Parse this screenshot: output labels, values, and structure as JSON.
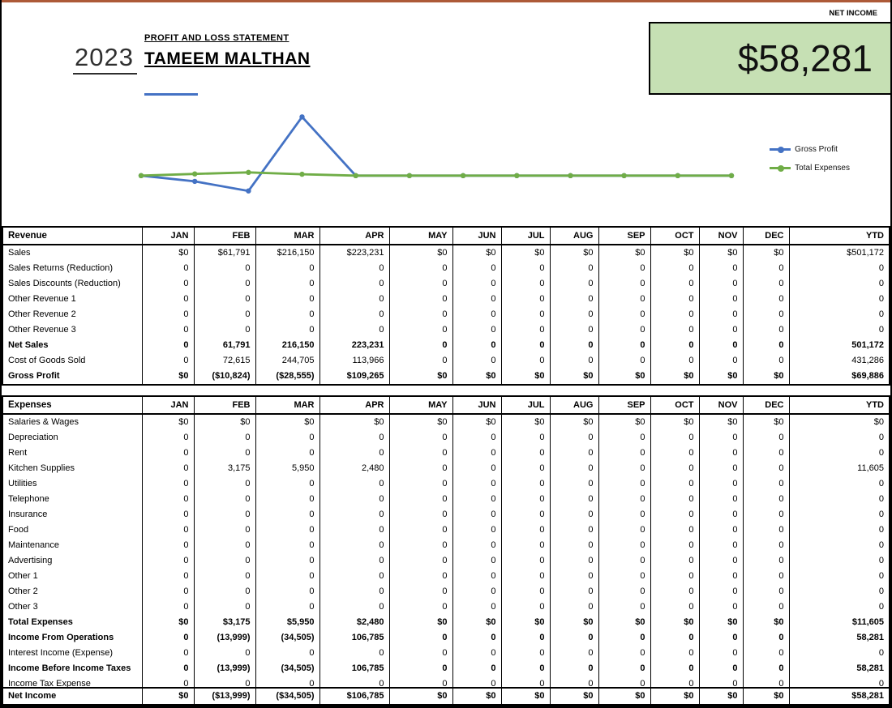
{
  "header": {
    "year": "2023",
    "subtitle": "PROFIT AND LOSS STATEMENT",
    "company": "TAMEEM MALTHAN",
    "net_income_label": "NET INCOME",
    "net_income_value": "$58,281"
  },
  "colors": {
    "gross_profit_line": "#4472c4",
    "total_expenses_line": "#70ad47",
    "net_income_box_bg": "#c6e0b4",
    "accent_underline": "#4472c4"
  },
  "chart_data": {
    "type": "line",
    "x": [
      "JAN",
      "FEB",
      "MAR",
      "APR",
      "MAY",
      "JUN",
      "JUL",
      "AUG",
      "SEP",
      "OCT",
      "NOV",
      "DEC"
    ],
    "series": [
      {
        "name": "Gross Profit",
        "color": "#4472c4",
        "values": [
          0,
          -10824,
          -28555,
          109265,
          0,
          0,
          0,
          0,
          0,
          0,
          0,
          0
        ]
      },
      {
        "name": "Total Expenses",
        "color": "#70ad47",
        "values": [
          0,
          3175,
          5950,
          2480,
          0,
          0,
          0,
          0,
          0,
          0,
          0,
          0
        ]
      }
    ],
    "title": "",
    "xlabel": "",
    "ylabel": "",
    "grid": false,
    "axes_hidden": true,
    "legend_position": "right"
  },
  "columns": [
    "JAN",
    "FEB",
    "MAR",
    "APR",
    "MAY",
    "JUN",
    "JUL",
    "AUG",
    "SEP",
    "OCT",
    "NOV",
    "DEC",
    "YTD"
  ],
  "revenue": {
    "title": "Revenue",
    "rows": [
      {
        "label": "Sales",
        "bold": false,
        "values": [
          "$0",
          "$61,791",
          "$216,150",
          "$223,231",
          "$0",
          "$0",
          "$0",
          "$0",
          "$0",
          "$0",
          "$0",
          "$0",
          "$501,172"
        ]
      },
      {
        "label": "Sales Returns (Reduction)",
        "bold": false,
        "values": [
          "0",
          "0",
          "0",
          "0",
          "0",
          "0",
          "0",
          "0",
          "0",
          "0",
          "0",
          "0",
          "0"
        ]
      },
      {
        "label": "Sales Discounts (Reduction)",
        "bold": false,
        "values": [
          "0",
          "0",
          "0",
          "0",
          "0",
          "0",
          "0",
          "0",
          "0",
          "0",
          "0",
          "0",
          "0"
        ]
      },
      {
        "label": "Other Revenue 1",
        "bold": false,
        "values": [
          "0",
          "0",
          "0",
          "0",
          "0",
          "0",
          "0",
          "0",
          "0",
          "0",
          "0",
          "0",
          "0"
        ]
      },
      {
        "label": "Other Revenue 2",
        "bold": false,
        "values": [
          "0",
          "0",
          "0",
          "0",
          "0",
          "0",
          "0",
          "0",
          "0",
          "0",
          "0",
          "0",
          "0"
        ]
      },
      {
        "label": "Other Revenue 3",
        "bold": false,
        "values": [
          "0",
          "0",
          "0",
          "0",
          "0",
          "0",
          "0",
          "0",
          "0",
          "0",
          "0",
          "0",
          "0"
        ]
      },
      {
        "label": "Net Sales",
        "bold": true,
        "values": [
          "0",
          "61,791",
          "216,150",
          "223,231",
          "0",
          "0",
          "0",
          "0",
          "0",
          "0",
          "0",
          "0",
          "501,172"
        ]
      },
      {
        "label": "Cost of Goods Sold",
        "bold": false,
        "values": [
          "0",
          "72,615",
          "244,705",
          "113,966",
          "0",
          "0",
          "0",
          "0",
          "0",
          "0",
          "0",
          "0",
          "431,286"
        ]
      },
      {
        "label": "Gross Profit",
        "bold": true,
        "values": [
          "$0",
          "($10,824)",
          "($28,555)",
          "$109,265",
          "$0",
          "$0",
          "$0",
          "$0",
          "$0",
          "$0",
          "$0",
          "$0",
          "$69,886"
        ]
      }
    ]
  },
  "expenses": {
    "title": "Expenses",
    "rows": [
      {
        "label": "Salaries & Wages",
        "bold": false,
        "values": [
          "$0",
          "$0",
          "$0",
          "$0",
          "$0",
          "$0",
          "$0",
          "$0",
          "$0",
          "$0",
          "$0",
          "$0",
          "$0"
        ]
      },
      {
        "label": "Depreciation",
        "bold": false,
        "values": [
          "0",
          "0",
          "0",
          "0",
          "0",
          "0",
          "0",
          "0",
          "0",
          "0",
          "0",
          "0",
          "0"
        ]
      },
      {
        "label": "Rent",
        "bold": false,
        "values": [
          "0",
          "0",
          "0",
          "0",
          "0",
          "0",
          "0",
          "0",
          "0",
          "0",
          "0",
          "0",
          "0"
        ]
      },
      {
        "label": "Kitchen Supplies",
        "bold": false,
        "values": [
          "0",
          "3,175",
          "5,950",
          "2,480",
          "0",
          "0",
          "0",
          "0",
          "0",
          "0",
          "0",
          "0",
          "11,605"
        ]
      },
      {
        "label": "Utilities",
        "bold": false,
        "values": [
          "0",
          "0",
          "0",
          "0",
          "0",
          "0",
          "0",
          "0",
          "0",
          "0",
          "0",
          "0",
          "0"
        ]
      },
      {
        "label": "Telephone",
        "bold": false,
        "values": [
          "0",
          "0",
          "0",
          "0",
          "0",
          "0",
          "0",
          "0",
          "0",
          "0",
          "0",
          "0",
          "0"
        ]
      },
      {
        "label": "Insurance",
        "bold": false,
        "values": [
          "0",
          "0",
          "0",
          "0",
          "0",
          "0",
          "0",
          "0",
          "0",
          "0",
          "0",
          "0",
          "0"
        ]
      },
      {
        "label": "Food",
        "bold": false,
        "values": [
          "0",
          "0",
          "0",
          "0",
          "0",
          "0",
          "0",
          "0",
          "0",
          "0",
          "0",
          "0",
          "0"
        ]
      },
      {
        "label": "Maintenance",
        "bold": false,
        "values": [
          "0",
          "0",
          "0",
          "0",
          "0",
          "0",
          "0",
          "0",
          "0",
          "0",
          "0",
          "0",
          "0"
        ]
      },
      {
        "label": "Advertising",
        "bold": false,
        "values": [
          "0",
          "0",
          "0",
          "0",
          "0",
          "0",
          "0",
          "0",
          "0",
          "0",
          "0",
          "0",
          "0"
        ]
      },
      {
        "label": "Other 1",
        "bold": false,
        "values": [
          "0",
          "0",
          "0",
          "0",
          "0",
          "0",
          "0",
          "0",
          "0",
          "0",
          "0",
          "0",
          "0"
        ]
      },
      {
        "label": "Other 2",
        "bold": false,
        "values": [
          "0",
          "0",
          "0",
          "0",
          "0",
          "0",
          "0",
          "0",
          "0",
          "0",
          "0",
          "0",
          "0"
        ]
      },
      {
        "label": "Other 3",
        "bold": false,
        "values": [
          "0",
          "0",
          "0",
          "0",
          "0",
          "0",
          "0",
          "0",
          "0",
          "0",
          "0",
          "0",
          "0"
        ]
      },
      {
        "label": "Total Expenses",
        "bold": true,
        "values": [
          "$0",
          "$3,175",
          "$5,950",
          "$2,480",
          "$0",
          "$0",
          "$0",
          "$0",
          "$0",
          "$0",
          "$0",
          "$0",
          "$11,605"
        ]
      },
      {
        "label": "Income From Operations",
        "bold": true,
        "values": [
          "0",
          "(13,999)",
          "(34,505)",
          "106,785",
          "0",
          "0",
          "0",
          "0",
          "0",
          "0",
          "0",
          "0",
          "58,281"
        ]
      },
      {
        "label": "Interest Income (Expense)",
        "bold": false,
        "values": [
          "0",
          "0",
          "0",
          "0",
          "0",
          "0",
          "0",
          "0",
          "0",
          "0",
          "0",
          "0",
          "0"
        ]
      },
      {
        "label": "Income Before Income Taxes",
        "bold": true,
        "values": [
          "0",
          "(13,999)",
          "(34,505)",
          "106,785",
          "0",
          "0",
          "0",
          "0",
          "0",
          "0",
          "0",
          "0",
          "58,281"
        ]
      },
      {
        "label": "Income Tax Expense",
        "bold": false,
        "values": [
          "0",
          "0",
          "0",
          "0",
          "0",
          "0",
          "0",
          "0",
          "0",
          "0",
          "0",
          "0",
          "0"
        ]
      }
    ]
  },
  "net_income": {
    "label": "Net Income",
    "values": [
      "$0",
      "($13,999)",
      "($34,505)",
      "$106,785",
      "$0",
      "$0",
      "$0",
      "$0",
      "$0",
      "$0",
      "$0",
      "$0",
      "$58,281"
    ]
  }
}
